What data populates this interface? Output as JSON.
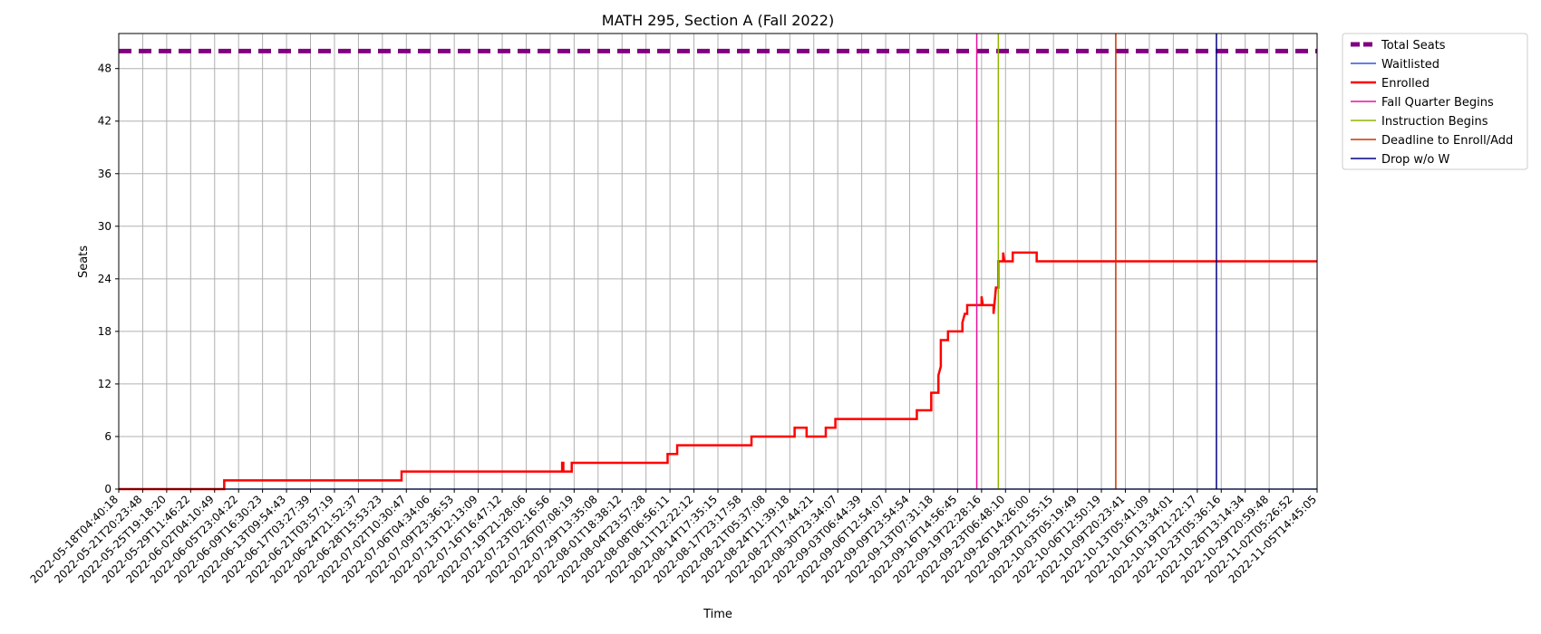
{
  "chart_data": {
    "type": "line",
    "title": "MATH 295, Section A (Fall 2022)",
    "xlabel": "Time",
    "ylabel": "Seats",
    "ylim": [
      0,
      52
    ],
    "y_ticks": [
      0,
      6,
      12,
      18,
      24,
      30,
      36,
      42,
      48
    ],
    "x_ticks": [
      "2022-05-18T04:40:18",
      "2022-05-21T20:23:48",
      "2022-05-25T19:18:20",
      "2022-05-29T11:46:22",
      "2022-06-02T04:10:49",
      "2022-06-05T23:04:22",
      "2022-06-09T16:30:23",
      "2022-06-13T09:54:43",
      "2022-06-17T03:27:39",
      "2022-06-21T03:57:19",
      "2022-06-24T21:52:37",
      "2022-06-28T15:53:23",
      "2022-07-02T10:30:47",
      "2022-07-06T04:34:06",
      "2022-07-09T23:36:53",
      "2022-07-13T12:13:09",
      "2022-07-16T16:47:12",
      "2022-07-19T21:28:06",
      "2022-07-23T02:16:56",
      "2022-07-26T07:08:19",
      "2022-07-29T13:35:08",
      "2022-08-01T18:38:12",
      "2022-08-04T23:57:28",
      "2022-08-08T06:56:11",
      "2022-08-11T12:22:12",
      "2022-08-14T17:35:15",
      "2022-08-17T23:17:58",
      "2022-08-21T05:37:08",
      "2022-08-24T11:39:18",
      "2022-08-27T17:44:21",
      "2022-08-30T23:34:07",
      "2022-09-03T06:44:39",
      "2022-09-06T12:54:07",
      "2022-09-09T23:54:54",
      "2022-09-13T07:31:18",
      "2022-09-16T14:56:45",
      "2022-09-19T22:28:16",
      "2022-09-23T06:48:10",
      "2022-09-26T14:26:00",
      "2022-09-29T21:55:15",
      "2022-10-03T05:19:49",
      "2022-10-06T12:50:19",
      "2022-10-09T20:23:41",
      "2022-10-13T05:41:09",
      "2022-10-16T13:34:01",
      "2022-10-19T21:22:17",
      "2022-10-23T05:36:16",
      "2022-10-26T13:14:34",
      "2022-10-29T20:59:48",
      "2022-11-02T05:26:52",
      "2022-11-05T14:45:05"
    ],
    "grid": true,
    "legend_position": "outside-top-right",
    "series": [
      {
        "name": "Total Seats",
        "color": "#800080",
        "style": "dashed",
        "width": 5,
        "points": [
          [
            0,
            50
          ],
          [
            50,
            50
          ]
        ]
      },
      {
        "name": "Waitlisted",
        "color": "#3355dd",
        "style": "solid",
        "width": 1.5,
        "points": [
          [
            0,
            0
          ],
          [
            50,
            0
          ]
        ]
      },
      {
        "name": "Enrolled",
        "color": "#ff0000",
        "style": "solid",
        "width": 2.5,
        "points": [
          [
            0,
            0
          ],
          [
            4.4,
            0
          ],
          [
            4.4,
            1
          ],
          [
            11.8,
            1
          ],
          [
            11.8,
            2
          ],
          [
            18.5,
            2
          ],
          [
            18.5,
            3
          ],
          [
            18.55,
            3
          ],
          [
            18.55,
            2
          ],
          [
            18.9,
            2
          ],
          [
            18.9,
            3
          ],
          [
            22.9,
            3
          ],
          [
            22.9,
            4
          ],
          [
            23.3,
            4
          ],
          [
            23.3,
            5
          ],
          [
            26.4,
            5
          ],
          [
            26.4,
            6
          ],
          [
            28.2,
            6
          ],
          [
            28.2,
            7
          ],
          [
            28.7,
            7
          ],
          [
            28.7,
            6
          ],
          [
            29.5,
            6
          ],
          [
            29.5,
            7
          ],
          [
            29.9,
            7
          ],
          [
            29.9,
            8
          ],
          [
            33.3,
            8
          ],
          [
            33.3,
            9
          ],
          [
            33.9,
            9
          ],
          [
            33.9,
            11
          ],
          [
            34.2,
            11
          ],
          [
            34.2,
            13
          ],
          [
            34.3,
            14
          ],
          [
            34.3,
            17
          ],
          [
            34.6,
            17
          ],
          [
            34.6,
            18
          ],
          [
            35.2,
            18
          ],
          [
            35.2,
            19
          ],
          [
            35.3,
            20
          ],
          [
            35.4,
            20
          ],
          [
            35.4,
            21
          ],
          [
            36.0,
            21
          ],
          [
            36.0,
            22
          ],
          [
            36.05,
            21
          ],
          [
            36.5,
            21
          ],
          [
            36.5,
            20
          ],
          [
            36.6,
            23
          ],
          [
            36.7,
            23
          ],
          [
            36.7,
            26
          ],
          [
            36.9,
            26
          ],
          [
            36.9,
            27
          ],
          [
            36.95,
            26
          ],
          [
            37.3,
            26
          ],
          [
            37.3,
            27
          ],
          [
            38.3,
            27
          ],
          [
            38.3,
            26
          ],
          [
            50,
            26
          ]
        ]
      },
      {
        "name": "Fall Quarter Begins",
        "color": "#e6109b",
        "style": "vline",
        "width": 1.5,
        "x": 35.8
      },
      {
        "name": "Instruction Begins",
        "color": "#8db600",
        "style": "vline",
        "width": 1.5,
        "x": 36.7
      },
      {
        "name": "Deadline to Enroll/Add",
        "color": "#cc3300",
        "style": "vline",
        "width": 1.5,
        "x": 41.6
      },
      {
        "name": "Drop w/o W",
        "color": "#000080",
        "style": "vline",
        "width": 1.5,
        "x": 45.8
      }
    ]
  }
}
